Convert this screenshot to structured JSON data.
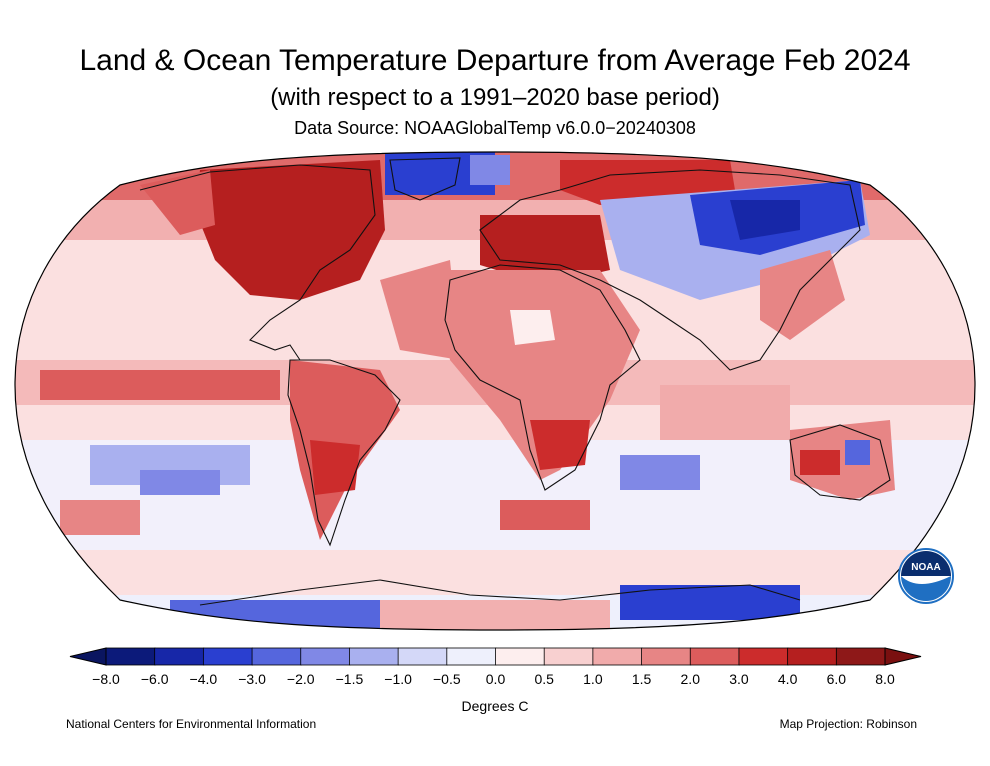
{
  "header": {
    "title": "Land & Ocean Temperature Departure from Average Feb 2024",
    "subtitle": "(with respect to a 1991–2020 base period)",
    "source": "Data Source: NOAAGlobalTemp v6.0.0−20240308"
  },
  "legend": {
    "units": "Degrees C",
    "ticks": [
      "−8.0",
      "−6.0",
      "−4.0",
      "−3.0",
      "−2.0",
      "−1.5",
      "−1.0",
      "−0.5",
      "0.0",
      "0.5",
      "1.0",
      "1.5",
      "2.0",
      "3.0",
      "4.0",
      "6.0",
      "8.0"
    ],
    "colors": [
      "#0c1a7a",
      "#1727a8",
      "#2a3fd0",
      "#5566dd",
      "#8088e6",
      "#a9b0ef",
      "#d4d8f8",
      "#eef0fc",
      "#fdeeee",
      "#f8d0d0",
      "#f1abab",
      "#e78585",
      "#dc5c5c",
      "#cc2c2c",
      "#b51f1f",
      "#8e1818"
    ],
    "end_low_color": "#0a1560",
    "end_high_color": "#7a1010"
  },
  "footer": {
    "credit": "National Centers for Environmental Information",
    "projection": "Map Projection: Robinson"
  },
  "logo": {
    "text": "NOAA",
    "color": "#1f6fc2"
  }
}
